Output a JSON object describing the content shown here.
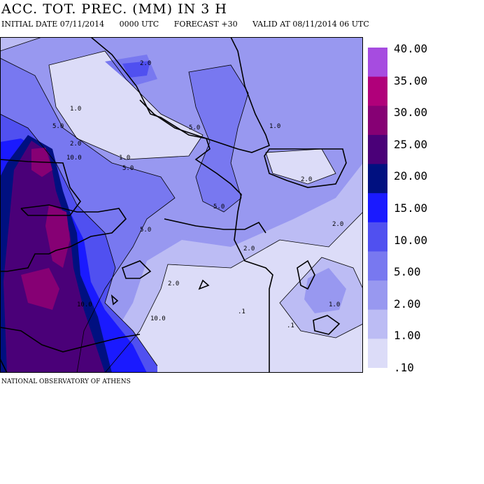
{
  "title": "ACC. TOT. PREC. (MM) IN 3 H",
  "subtitle": {
    "initial": "INITIAL DATE 07/11/2014",
    "utc": "0000 UTC",
    "forecast": "FORECAST +30",
    "valid": "VALID AT  08/11/2014  06 UTC"
  },
  "footer": "NATIONAL OBSERVATORY OF ATHENS",
  "legend": {
    "labels": [
      "40.00",
      "35.00",
      "30.00",
      "25.00",
      "20.00",
      "15.00",
      "10.00",
      "5.00",
      "2.00",
      "1.00",
      ".10"
    ],
    "colors": [
      "#a64ce0",
      "#b0007a",
      "#860074",
      "#4a0078",
      "#001080",
      "#1a1aff",
      "#5050f0",
      "#7878f0",
      "#9898f0",
      "#bcbcf4",
      "#dcdcf8"
    ]
  },
  "contour_labels": [
    "1.0",
    "2.0",
    "5.0",
    "10.0",
    ".1"
  ]
}
